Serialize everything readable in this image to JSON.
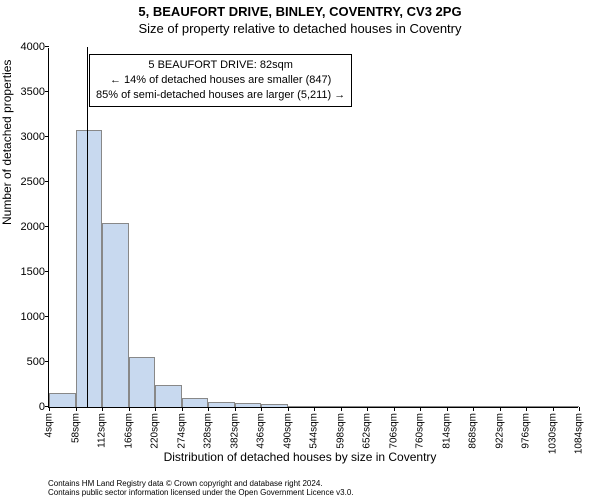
{
  "title_line1": "5, BEAUFORT DRIVE, BINLEY, COVENTRY, CV3 2PG",
  "title_line2": "Size of property relative to detached houses in Coventry",
  "ylabel": "Number of detached properties",
  "xlabel": "Distribution of detached houses by size in Coventry",
  "footer_line1": "Contains HM Land Registry data © Crown copyright and database right 2024.",
  "footer_line2": "Contains public sector information licensed under the Open Government Licence v3.0.",
  "annotation": {
    "line1": "5 BEAUFORT DRIVE: 82sqm",
    "line2": "← 14% of detached houses are smaller (847)",
    "line3": "85% of semi-detached houses are larger (5,211) →"
  },
  "chart": {
    "type": "histogram",
    "ylim": [
      0,
      4000
    ],
    "yticks": [
      0,
      500,
      1000,
      1500,
      2000,
      2500,
      3000,
      3500,
      4000
    ],
    "xticks": [
      4,
      58,
      112,
      166,
      220,
      274,
      328,
      382,
      436,
      490,
      544,
      598,
      652,
      706,
      760,
      814,
      868,
      922,
      976,
      1030,
      1084
    ],
    "xtick_suffix": "sqm",
    "xlim": [
      4,
      1084
    ],
    "bar_color": "#c8d9ef",
    "bar_border": "#888888",
    "background_color": "#ffffff",
    "marker_x": 82,
    "bars": [
      {
        "x0": 4,
        "x1": 58,
        "y": 160
      },
      {
        "x0": 58,
        "x1": 112,
        "y": 3080
      },
      {
        "x0": 112,
        "x1": 166,
        "y": 2050
      },
      {
        "x0": 166,
        "x1": 220,
        "y": 560
      },
      {
        "x0": 220,
        "x1": 274,
        "y": 240
      },
      {
        "x0": 274,
        "x1": 328,
        "y": 100
      },
      {
        "x0": 328,
        "x1": 382,
        "y": 60
      },
      {
        "x0": 382,
        "x1": 436,
        "y": 40
      },
      {
        "x0": 436,
        "x1": 490,
        "y": 30
      },
      {
        "x0": 490,
        "x1": 544,
        "y": 15
      },
      {
        "x0": 544,
        "x1": 598,
        "y": 10
      },
      {
        "x0": 598,
        "x1": 652,
        "y": 8
      },
      {
        "x0": 652,
        "x1": 706,
        "y": 6
      },
      {
        "x0": 706,
        "x1": 760,
        "y": 4
      },
      {
        "x0": 760,
        "x1": 814,
        "y": 3
      },
      {
        "x0": 814,
        "x1": 868,
        "y": 2
      },
      {
        "x0": 868,
        "x1": 922,
        "y": 2
      },
      {
        "x0": 922,
        "x1": 976,
        "y": 1
      },
      {
        "x0": 976,
        "x1": 1030,
        "y": 1
      },
      {
        "x0": 1030,
        "x1": 1084,
        "y": 1
      }
    ]
  }
}
